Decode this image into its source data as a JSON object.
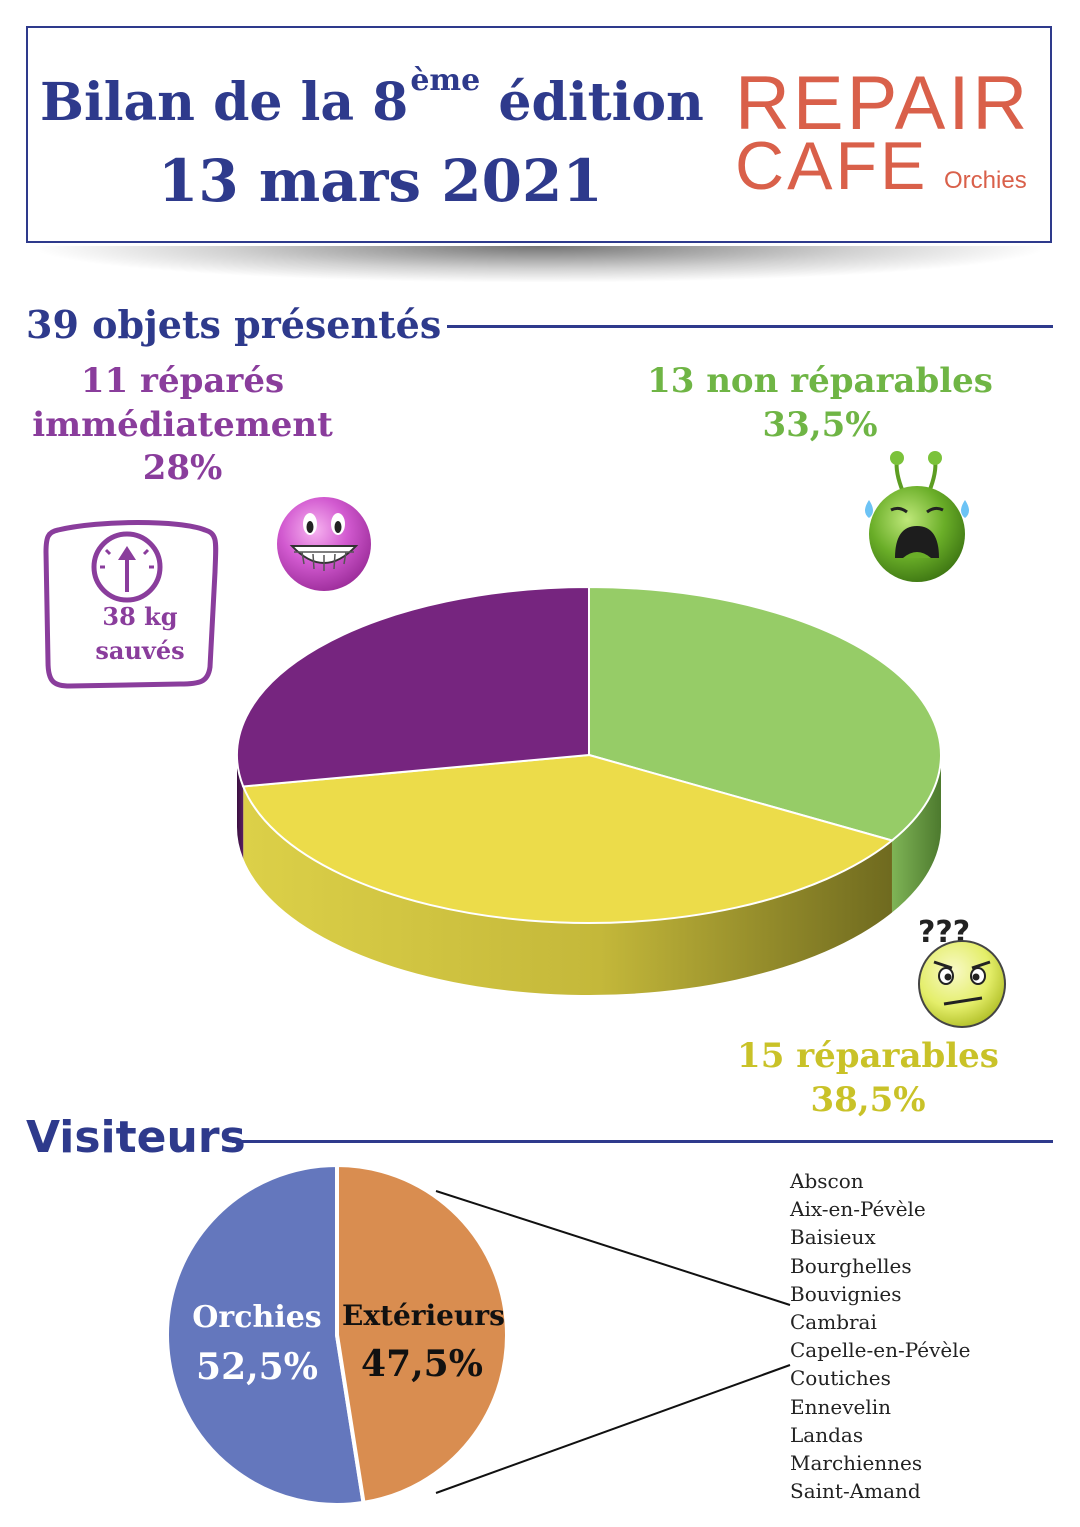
{
  "header": {
    "title_prefix": "Bilan de la 8",
    "title_sup": "ème",
    "title_suffix": " édition",
    "date": "13 mars 2021",
    "logo_line1": "REPAIR",
    "logo_line2": "CAFE",
    "logo_city": "Orchies"
  },
  "objects_section": {
    "title": "39 objets présentés",
    "weight_value": "38 kg",
    "weight_label": "sauvés"
  },
  "visitors_section": {
    "title": "Visiteurs",
    "towns": [
      "Abscon",
      "Aix-en-Pévèle",
      "Baisieux",
      "Bourghelles",
      "Bouvignies",
      "Cambrai",
      "Capelle-en-Pévèle",
      "Coutiches",
      "Ennevelin",
      "Landas",
      "Marchiennes",
      "Saint-Amand"
    ]
  },
  "icons": {
    "weight_scale": "scale-icon",
    "happy": "grinning-face-icon",
    "sad": "crying-alien-icon",
    "confused": "confused-face-icon"
  },
  "chart_data": [
    {
      "type": "pie",
      "title": "39 objets présentés",
      "slices": [
        {
          "label_line1": "11 réparés",
          "label_line2": "immédiatement",
          "count": 11,
          "percent_label": "28%",
          "value": 28,
          "color": "#76257f"
        },
        {
          "label_line1": "13 non réparables",
          "count": 13,
          "percent_label": "33,5%",
          "value": 33.5,
          "color": "#96cc67"
        },
        {
          "label_line1": "15 réparables",
          "count": 15,
          "percent_label": "38,5%",
          "value": 38.5,
          "color": "#ecdc4a"
        }
      ]
    },
    {
      "type": "pie",
      "title": "Visiteurs",
      "slices": [
        {
          "label": "Orchies",
          "percent_label": "52,5%",
          "value": 52.5,
          "color": "#6477bd"
        },
        {
          "label": "Extérieurs",
          "percent_label": "47,5%",
          "value": 47.5,
          "color": "#d98d50"
        }
      ]
    }
  ]
}
